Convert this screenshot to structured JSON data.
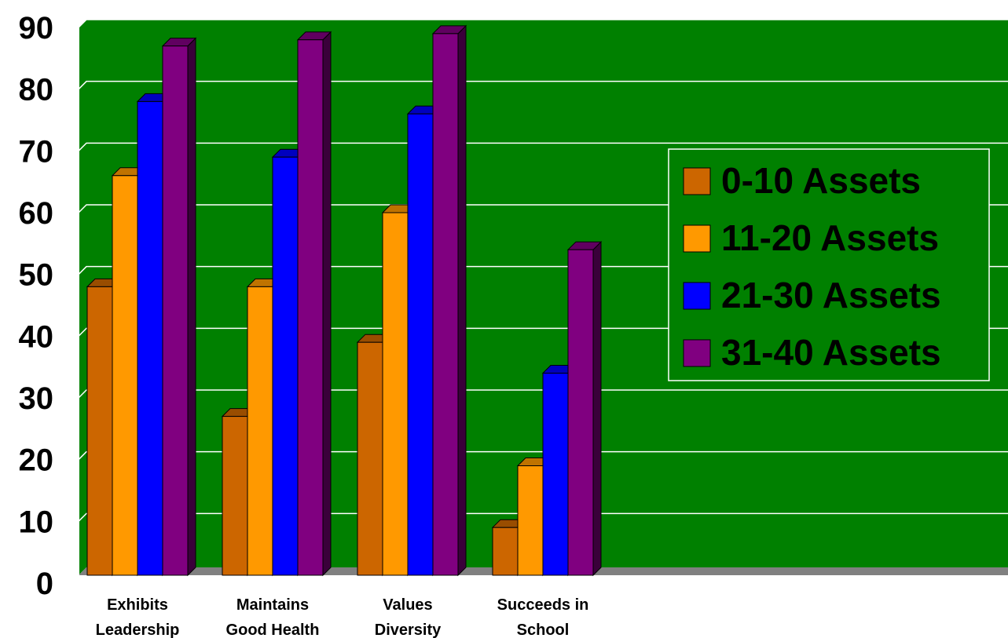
{
  "chart_data": {
    "type": "bar",
    "title": "",
    "xlabel": "",
    "ylabel": "",
    "ylim": [
      0,
      90
    ],
    "yticks": [
      0,
      10,
      20,
      30,
      40,
      50,
      60,
      70,
      80,
      90
    ],
    "categories": [
      [
        "Exhibits",
        "Leadership"
      ],
      [
        "Maintains",
        "Good Health"
      ],
      [
        "Values",
        "Diversity"
      ],
      [
        "Succeeds in",
        "School"
      ]
    ],
    "series": [
      {
        "name": "0-10 Assets",
        "color": "#cc6600",
        "values": [
          48,
          27,
          39,
          9
        ]
      },
      {
        "name": "11-20 Assets",
        "color": "#ff9900",
        "values": [
          66,
          48,
          60,
          19
        ]
      },
      {
        "name": "21-30 Assets",
        "color": "#0000ff",
        "values": [
          78,
          69,
          76,
          34
        ]
      },
      {
        "name": "31-40 Assets",
        "color": "#800080",
        "values": [
          87,
          88,
          89,
          54
        ]
      }
    ],
    "plot_background": "#008000",
    "grid": true,
    "legend_position": "right"
  }
}
